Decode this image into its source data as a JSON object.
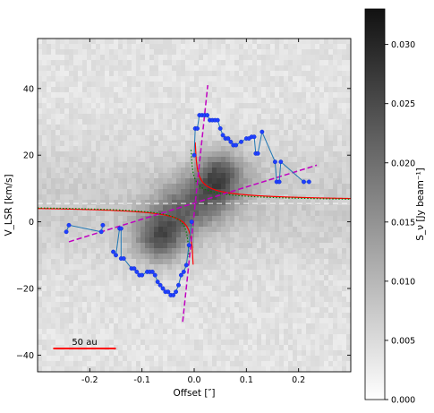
{
  "chart_data": {
    "type": "scatter",
    "title": "",
    "xlabel": "Offset [″]",
    "ylabel": "V_LSR [km/s]",
    "xlim": [
      -0.3,
      0.3
    ],
    "ylim": [
      -45,
      55
    ],
    "xticks": [
      -0.2,
      -0.1,
      0.0,
      0.1,
      0.2
    ],
    "xtick_labels": [
      "-0.2",
      "-0.1",
      "0.0",
      "0.1",
      "0.2"
    ],
    "yticks": [
      -40,
      -20,
      0,
      20,
      40
    ],
    "ytick_labels": [
      "−40",
      "−20",
      "0",
      "20",
      "40"
    ],
    "grid": false,
    "systemic_velocity": 5.5,
    "scale_bar": {
      "label": "50 au",
      "x_start": -0.27,
      "x_end": -0.15,
      "y": -38,
      "color": "#ff0000"
    },
    "colorbar": {
      "label": "S_ν [Jy beam⁻¹]",
      "min": 0.0,
      "max": 0.033,
      "ticks": [
        0.0,
        0.005,
        0.01,
        0.015,
        0.02,
        0.025,
        0.03
      ],
      "tick_labels": [
        "0.000",
        "0.005",
        "0.010",
        "0.015",
        "0.020",
        "0.025",
        "0.030"
      ],
      "colormap": "grey"
    },
    "curves": {
      "keplerian_red": {
        "color": "#ff0000",
        "style": "solid",
        "v_sys": 5.5,
        "k": 0.82,
        "offset0": 0.0
      },
      "keplerian_green": {
        "color": "#008000",
        "style": "dotted",
        "v_sys": 5.5,
        "k": 0.72,
        "offset0": -0.008
      },
      "linear_fits": [
        {
          "color": "#c000c0",
          "style": "dashed",
          "points": [
            [
              -0.24,
              -6
            ],
            [
              0.235,
              17
            ]
          ]
        },
        {
          "color": "#c000c0",
          "style": "dashed",
          "points": [
            [
              -0.022,
              -30
            ],
            [
              0.026,
              41
            ]
          ]
        }
      ]
    },
    "series": [
      {
        "points_left_upper": [
          [
            -0.245,
            -3
          ],
          [
            -0.24,
            -1
          ],
          [
            -0.178,
            -3
          ],
          [
            -0.175,
            -1
          ]
        ],
        "points_left_lower": [
          [
            -0.155,
            -9
          ],
          [
            -0.15,
            -10
          ],
          [
            -0.143,
            -2
          ],
          [
            -0.14,
            -2
          ],
          [
            -0.14,
            -11
          ],
          [
            -0.135,
            -11
          ],
          [
            -0.12,
            -14
          ],
          [
            -0.115,
            -14
          ],
          [
            -0.11,
            -15
          ],
          [
            -0.105,
            -16
          ],
          [
            -0.1,
            -16
          ],
          [
            -0.09,
            -15
          ],
          [
            -0.085,
            -15
          ],
          [
            -0.08,
            -15
          ],
          [
            -0.075,
            -16
          ],
          [
            -0.07,
            -18
          ],
          [
            -0.065,
            -19
          ],
          [
            -0.06,
            -20
          ],
          [
            -0.055,
            -21
          ],
          [
            -0.05,
            -21
          ],
          [
            -0.045,
            -22
          ],
          [
            -0.04,
            -22
          ],
          [
            -0.035,
            -21
          ],
          [
            -0.03,
            -19
          ],
          [
            -0.025,
            -16
          ],
          [
            -0.02,
            -15
          ],
          [
            -0.015,
            -13
          ],
          [
            -0.01,
            -7
          ],
          [
            -0.005,
            0
          ]
        ],
        "points_right": [
          [
            0.0,
            20
          ],
          [
            0.002,
            28
          ],
          [
            0.006,
            28
          ],
          [
            0.01,
            32
          ],
          [
            0.015,
            32
          ],
          [
            0.02,
            32
          ],
          [
            0.025,
            32
          ],
          [
            0.03,
            30.5
          ],
          [
            0.035,
            30.5
          ],
          [
            0.04,
            30.5
          ],
          [
            0.045,
            30.5
          ],
          [
            0.05,
            28
          ],
          [
            0.055,
            26
          ],
          [
            0.06,
            25
          ],
          [
            0.065,
            25
          ],
          [
            0.07,
            24
          ],
          [
            0.075,
            23
          ],
          [
            0.08,
            23
          ],
          [
            0.09,
            24
          ],
          [
            0.1,
            25
          ],
          [
            0.105,
            25
          ],
          [
            0.11,
            25.5
          ],
          [
            0.115,
            25.5
          ],
          [
            0.118,
            20.5
          ],
          [
            0.122,
            20.5
          ],
          [
            0.13,
            27
          ],
          [
            0.155,
            18
          ],
          [
            0.158,
            12
          ],
          [
            0.163,
            12
          ],
          [
            0.166,
            18
          ],
          [
            0.21,
            12
          ],
          [
            0.22,
            12
          ]
        ]
      }
    ]
  }
}
